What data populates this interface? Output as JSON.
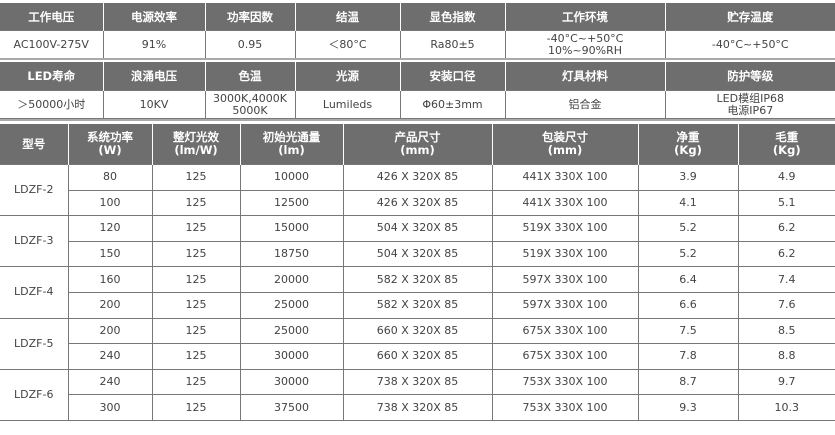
{
  "spec_table_1": {
    "headers": [
      "工作电压",
      "电源效率",
      "功率因数",
      "结温",
      "显色指数",
      "工作环境",
      "贮存温度"
    ],
    "values": [
      "AC100V-275V",
      "91%",
      "0.95",
      "＜80°C",
      "Ra80±5",
      "-40°C~+50°C\n10%~90%RH",
      "-40°C~+50°C"
    ]
  },
  "spec_table_2": {
    "headers": [
      "LED寿命",
      "浪涌电压",
      "色温",
      "光源",
      "安装口径",
      "灯具材料",
      "防护等级"
    ],
    "values": [
      "＞50000小时",
      "10KV",
      "3000K,4000K\n5000K",
      "Lumileds",
      "Φ60±3mm",
      "铝合金",
      "LED模组IP68\n电源IP67"
    ]
  },
  "model_table": {
    "headers": [
      "型号",
      "系统功率\n(W)",
      "整灯光效\n(lm/W)",
      "初始光通量\n(lm)",
      "产品尺寸\n(mm)",
      "包装尺寸\n(mm)",
      "净重\n(Kg)",
      "毛重\n(Kg)"
    ],
    "models": [
      {
        "name": "LDZF-2",
        "rows": [
          [
            "80",
            "125",
            "10000",
            "426 X 320X 85",
            "441X 330X 100",
            "3.9",
            "4.9"
          ],
          [
            "100",
            "125",
            "12500",
            "426 X 320X 85",
            "441X 330X 100",
            "4.1",
            "5.1"
          ]
        ]
      },
      {
        "name": "LDZF-3",
        "rows": [
          [
            "120",
            "125",
            "15000",
            "504 X 320X 85",
            "519X 330X 100",
            "5.2",
            "6.2"
          ],
          [
            "150",
            "125",
            "18750",
            "504 X 320X 85",
            "519X 330X 100",
            "5.2",
            "6.2"
          ]
        ]
      },
      {
        "name": "LDZF-4",
        "rows": [
          [
            "160",
            "125",
            "20000",
            "582 X 320X 85",
            "597X 330X 100",
            "6.4",
            "7.4"
          ],
          [
            "200",
            "125",
            "25000",
            "582 X 320X 85",
            "597X 330X 100",
            "6.6",
            "7.6"
          ]
        ]
      },
      {
        "name": "LDZF-5",
        "rows": [
          [
            "200",
            "125",
            "25000",
            "660 X 320X 85",
            "675X 330X 100",
            "7.5",
            "8.5"
          ],
          [
            "240",
            "125",
            "30000",
            "660 X 320X 85",
            "675X 330X 100",
            "7.8",
            "8.8"
          ]
        ]
      },
      {
        "name": "LDZF-6",
        "rows": [
          [
            "240",
            "125",
            "30000",
            "738 X 320X 85",
            "753X 330X 100",
            "8.7",
            "9.7"
          ],
          [
            "300",
            "125",
            "37500",
            "738 X 320X 85",
            "753X 330X 100",
            "9.3",
            "10.3"
          ]
        ]
      }
    ]
  },
  "colors": {
    "header_bg": "#6e6e6e",
    "header_text": "#ffffff",
    "border": "#777777"
  }
}
